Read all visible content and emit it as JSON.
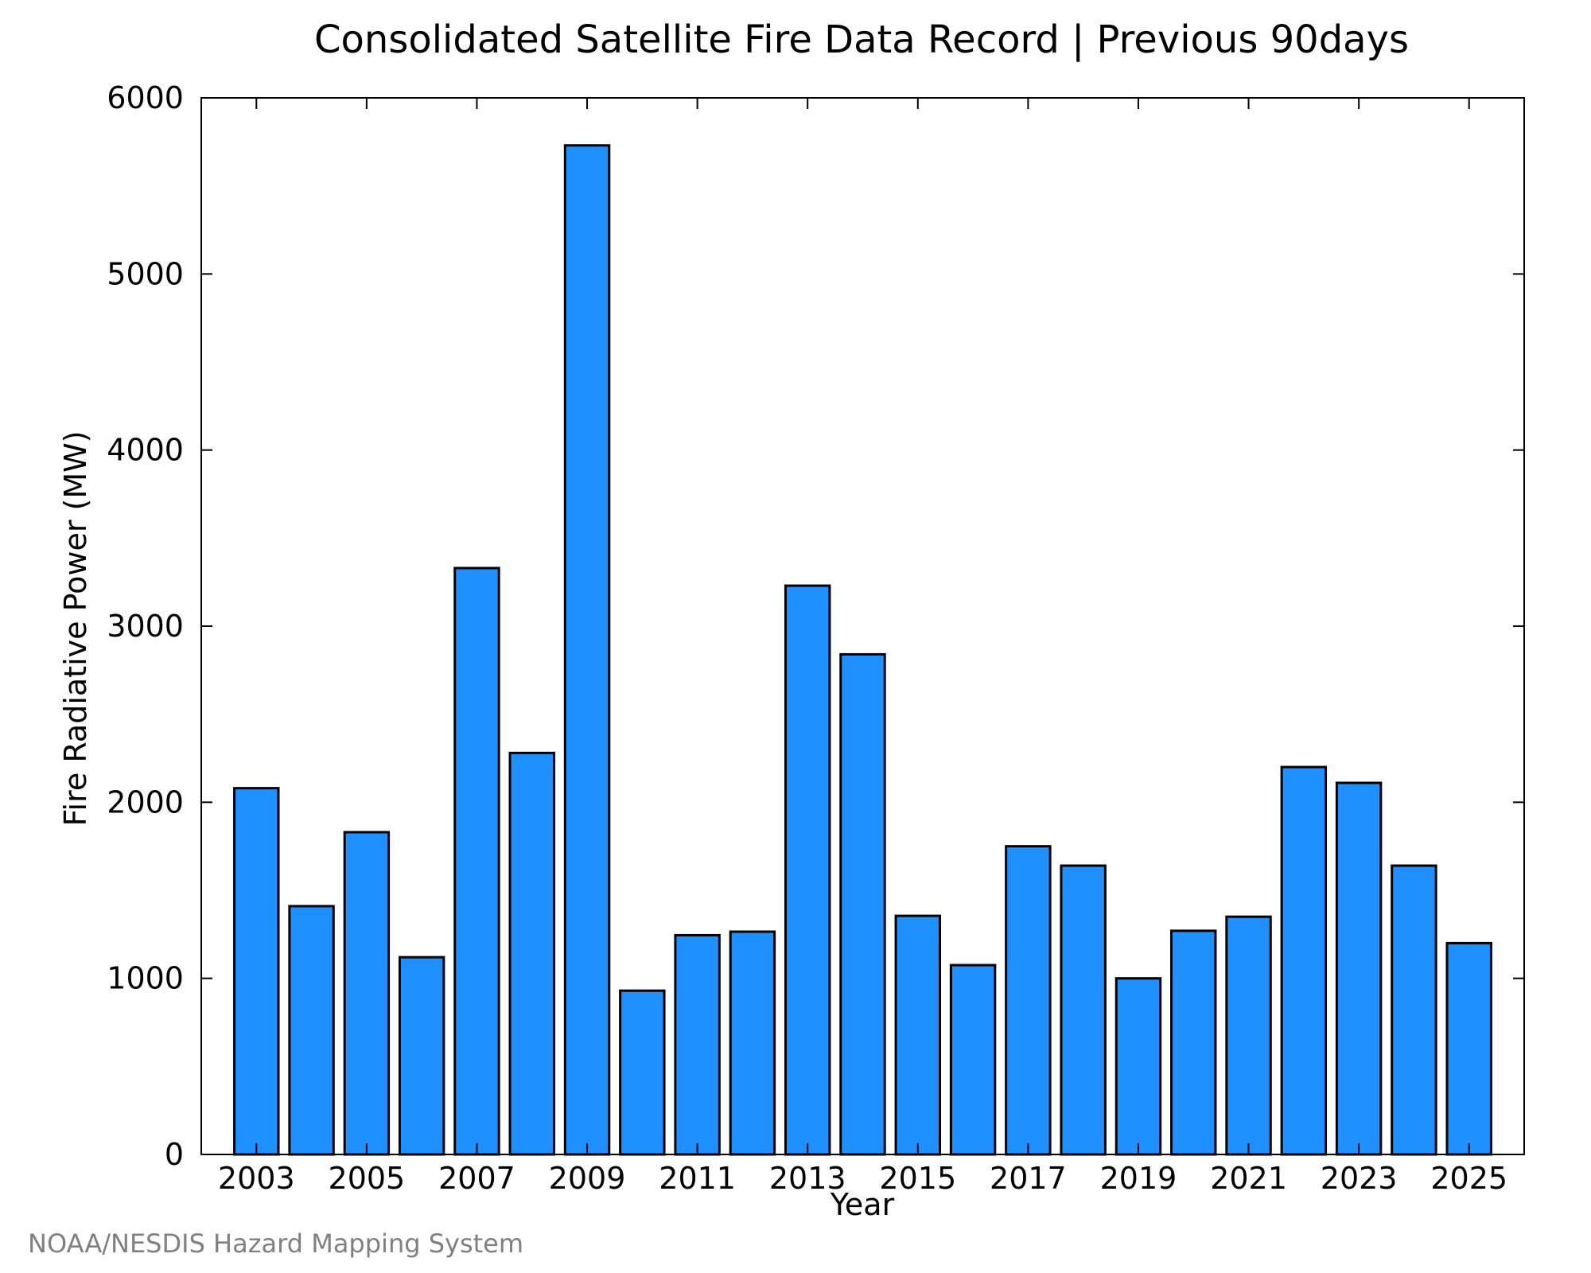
{
  "chart_data": {
    "type": "bar",
    "title": "Consolidated Satellite Fire Data Record | Previous 90days",
    "xlabel": "Year",
    "ylabel": "Fire Radiative Power (MW)",
    "ylim": [
      0,
      6000
    ],
    "yticks": [
      0,
      1000,
      2000,
      3000,
      4000,
      5000,
      6000
    ],
    "xticks": [
      2003,
      2005,
      2007,
      2009,
      2011,
      2013,
      2015,
      2017,
      2019,
      2021,
      2023,
      2025
    ],
    "categories": [
      2003,
      2004,
      2005,
      2006,
      2007,
      2008,
      2009,
      2010,
      2011,
      2012,
      2013,
      2014,
      2015,
      2016,
      2017,
      2018,
      2019,
      2020,
      2021,
      2022,
      2023,
      2024,
      2025
    ],
    "values": [
      2080,
      1410,
      1830,
      1120,
      3330,
      2280,
      5730,
      930,
      1245,
      1265,
      3230,
      2840,
      1355,
      1075,
      1750,
      1640,
      1000,
      1270,
      1350,
      2200,
      2110,
      1640,
      1200
    ],
    "bar_color": "#1e90ff",
    "grid": false,
    "legend": null
  },
  "credit": "NOAA/NESDIS Hazard Mapping System"
}
